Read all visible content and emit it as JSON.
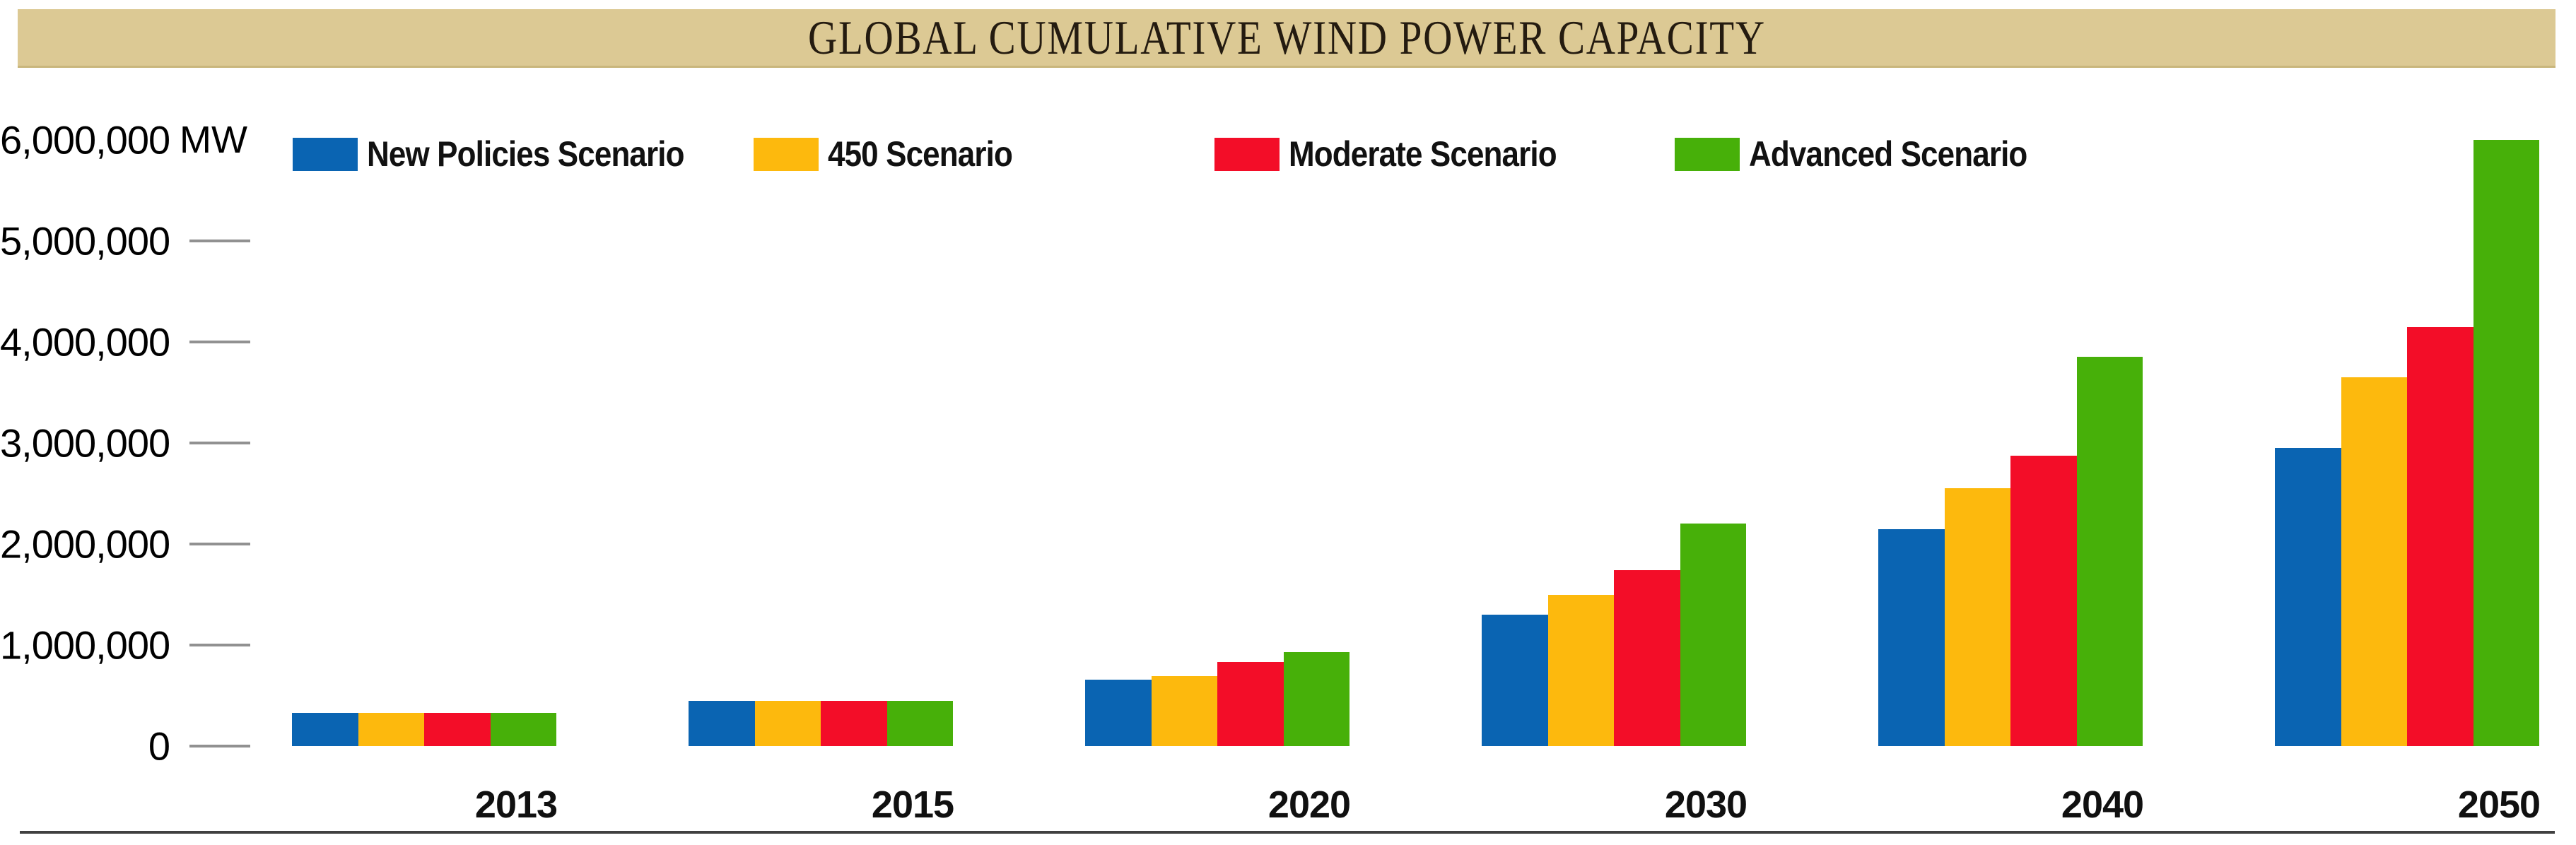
{
  "title": "GLOBAL CUMULATIVE WIND POWER CAPACITY",
  "unit_label": "MW",
  "colors": {
    "banner_background": "#dcc994",
    "new_policies_blue": "#0a64b2",
    "scenario_450_yellow": "#fdb90d",
    "moderate_red": "#f30d28",
    "advanced_green": "#47b009"
  },
  "y_axis": {
    "tick_labels": [
      "0",
      "1,000,000",
      "2,000,000",
      "3,000,000",
      "4,000,000",
      "5,000,000",
      "6,000,000"
    ],
    "tick_values": [
      0,
      1000000,
      2000000,
      3000000,
      4000000,
      5000000,
      6000000
    ]
  },
  "chart_data": {
    "type": "bar",
    "title": "GLOBAL CUMULATIVE WIND POWER CAPACITY",
    "unit": "MW",
    "xlabel": "",
    "ylabel": "MW",
    "ylim": [
      0,
      6000000
    ],
    "grid": false,
    "legend_position": "top",
    "categories": [
      "2013",
      "2015",
      "2020",
      "2030",
      "2040",
      "2050"
    ],
    "series": [
      {
        "name": "New Policies Scenario",
        "color": "#0a64b2",
        "values": [
          330000,
          450000,
          660000,
          1300000,
          2150000,
          2950000
        ]
      },
      {
        "name": "450 Scenario",
        "color": "#fdb90d",
        "values": [
          330000,
          450000,
          690000,
          1500000,
          2550000,
          3650000
        ]
      },
      {
        "name": "Moderate Scenario",
        "color": "#f30d28",
        "values": [
          330000,
          450000,
          830000,
          1740000,
          2875000,
          4150000
        ]
      },
      {
        "name": "Advanced Scenario",
        "color": "#47b009",
        "values": [
          330000,
          450000,
          930000,
          2200000,
          3850000,
          6000000
        ]
      }
    ]
  }
}
